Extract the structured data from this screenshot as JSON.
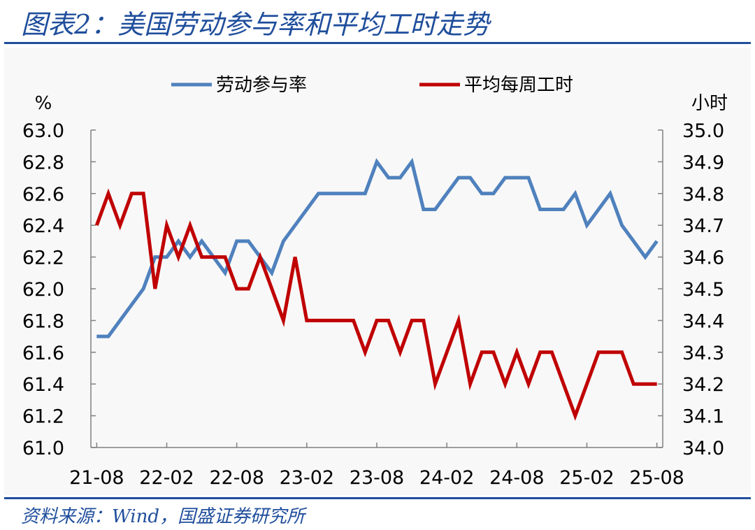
{
  "title": "图表2：美国劳动参与率和平均工时走势",
  "source": "资料来源：Wind，国盛证券研究所",
  "colors": {
    "lfpr": "#4f81bd",
    "hours": "#c00000",
    "brand": "#1f4e9c"
  },
  "chart_data": {
    "type": "line",
    "title": "",
    "legend_position": "top",
    "x_tick_labels": [
      "21-08",
      "22-02",
      "22-08",
      "23-02",
      "23-08",
      "24-02",
      "24-08",
      "25-02",
      "25-08"
    ],
    "x": [
      "21-08",
      "21-09",
      "21-10",
      "21-11",
      "21-12",
      "22-01",
      "22-02",
      "22-03",
      "22-04",
      "22-05",
      "22-06",
      "22-07",
      "22-08",
      "22-09",
      "22-10",
      "22-11",
      "22-12",
      "23-01",
      "23-02",
      "23-03",
      "23-04",
      "23-05",
      "23-06",
      "23-07",
      "23-08",
      "23-09",
      "23-10",
      "23-11",
      "23-12",
      "24-01",
      "24-02",
      "24-03",
      "24-04",
      "24-05",
      "24-06",
      "24-07",
      "24-08",
      "24-09",
      "24-10",
      "24-11",
      "24-12",
      "25-01",
      "25-02",
      "25-03",
      "25-04",
      "25-05",
      "25-06",
      "25-07",
      "25-08"
    ],
    "left_axis": {
      "unit": "%",
      "ylim": [
        61.0,
        63.0
      ],
      "ticks": [
        "61.0",
        "61.2",
        "61.4",
        "61.6",
        "61.8",
        "62.0",
        "62.2",
        "62.4",
        "62.6",
        "62.8",
        "63.0"
      ]
    },
    "right_axis": {
      "unit": "小时",
      "ylim": [
        34.0,
        35.0
      ],
      "ticks": [
        "34.0",
        "34.1",
        "34.2",
        "34.3",
        "34.4",
        "34.5",
        "34.6",
        "34.7",
        "34.8",
        "34.9",
        "35.0"
      ]
    },
    "series": [
      {
        "name": "劳动参与率",
        "axis": "left",
        "values": [
          61.7,
          61.7,
          61.8,
          61.9,
          62.0,
          62.2,
          62.2,
          62.3,
          62.2,
          62.3,
          62.2,
          62.1,
          62.3,
          62.3,
          62.2,
          62.1,
          62.3,
          62.4,
          62.5,
          62.6,
          62.6,
          62.6,
          62.6,
          62.6,
          62.8,
          62.7,
          62.7,
          62.8,
          62.5,
          62.5,
          62.6,
          62.7,
          62.7,
          62.6,
          62.6,
          62.7,
          62.7,
          62.7,
          62.5,
          62.5,
          62.5,
          62.6,
          62.4,
          62.5,
          62.6,
          62.4,
          62.3,
          62.2,
          62.3
        ]
      },
      {
        "name": "平均每周工时",
        "axis": "right",
        "values": [
          34.7,
          34.8,
          34.7,
          34.8,
          34.8,
          34.5,
          34.7,
          34.6,
          34.7,
          34.6,
          34.6,
          34.6,
          34.5,
          34.5,
          34.6,
          34.5,
          34.4,
          34.6,
          34.4,
          34.4,
          34.4,
          34.4,
          34.4,
          34.3,
          34.4,
          34.4,
          34.3,
          34.4,
          34.4,
          34.2,
          34.3,
          34.4,
          34.2,
          34.3,
          34.3,
          34.2,
          34.3,
          34.2,
          34.3,
          34.3,
          34.2,
          34.1,
          34.2,
          34.3,
          34.3,
          34.3,
          34.2,
          34.2,
          34.2
        ]
      }
    ]
  }
}
